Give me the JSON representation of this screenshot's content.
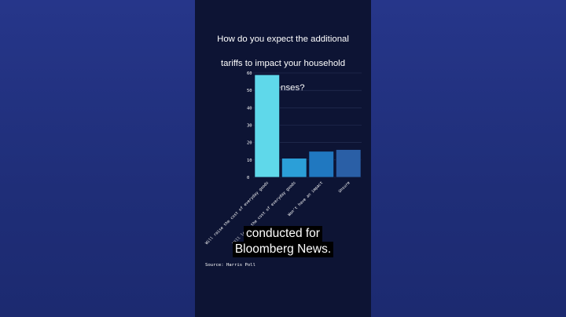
{
  "chart_data": {
    "type": "bar",
    "title": "How do you expect the additional tariffs to impact your household expenses?",
    "title_lines": [
      "How do you expect the additional",
      "tariffs to impact your household",
      "expenses?"
    ],
    "categories": [
      "Will raise the cost of everyday goods",
      "Will lower the cost of everyday goods",
      "Won't have an impact",
      "Unsure"
    ],
    "values": [
      59,
      11,
      15,
      16
    ],
    "bar_colors": [
      "#5fd8ea",
      "#2b9fd8",
      "#2078c0",
      "#2a5fa6"
    ],
    "ylim": [
      0,
      60
    ],
    "yticks": [
      "0",
      "10",
      "20",
      "30",
      "40",
      "50",
      "60"
    ],
    "grid": true,
    "xlabel": "",
    "ylabel": "",
    "source": "Source: Harris Poll"
  },
  "caption": {
    "line1": "conducted for",
    "line2": "Bloomberg News."
  }
}
